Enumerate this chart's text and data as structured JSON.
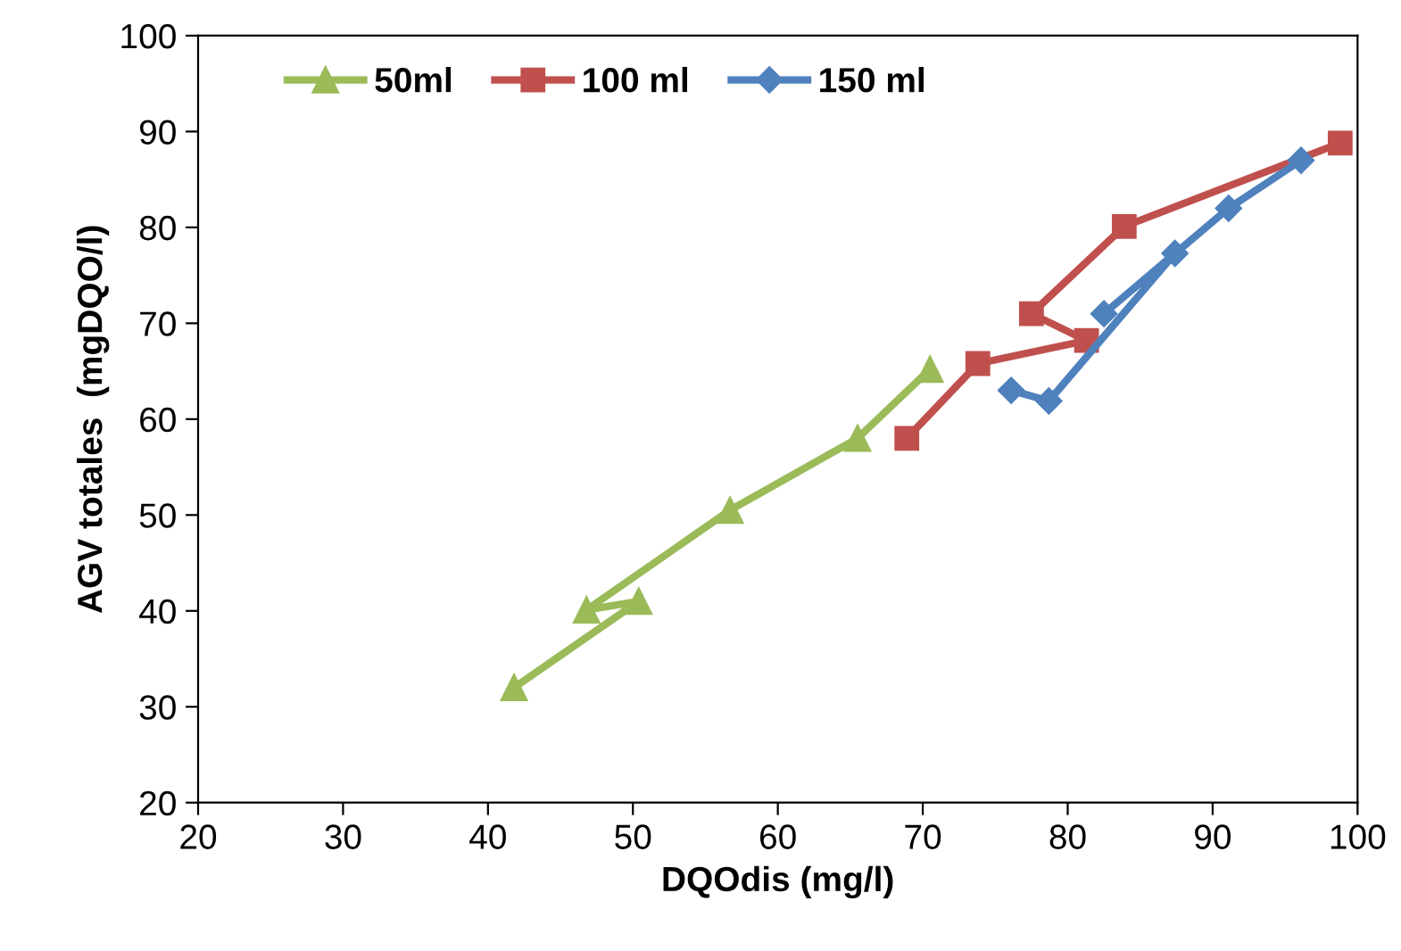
{
  "chart_data": {
    "type": "line",
    "xlabel": "DQOdis (mg/l)",
    "ylabel": "AGV totales  (mgDQO/l)",
    "xlim": [
      20,
      100
    ],
    "xticks": [
      20,
      30,
      40,
      50,
      60,
      70,
      80,
      90,
      100
    ],
    "ylim": [
      20,
      100
    ],
    "yticks": [
      20,
      30,
      40,
      50,
      60,
      70,
      80,
      90,
      100
    ],
    "grid": false,
    "legend": "top left",
    "series": [
      {
        "name": "50ml",
        "color": "#9bbb59",
        "marker": "triangle",
        "x": [
          41.8,
          50.4,
          46.8,
          56.7,
          65.5,
          70.5
        ],
        "values": [
          32,
          41.0,
          40.1,
          50.5,
          58.0,
          65.2
        ]
      },
      {
        "name": "100 ml",
        "color": "#c0504d",
        "marker": "square",
        "x": [
          68.9,
          73.8,
          81.3,
          77.5,
          83.9,
          98.8
        ],
        "values": [
          58,
          65.8,
          68.2,
          71,
          80.1,
          88.8
        ]
      },
      {
        "name": "150 ml",
        "color": "#4f81bd",
        "marker": "diamond",
        "x": [
          76.1,
          78.7,
          87.4,
          82.5,
          91.1,
          96.1
        ],
        "values": [
          63,
          61.9,
          77.3,
          71,
          82,
          87
        ]
      }
    ]
  }
}
